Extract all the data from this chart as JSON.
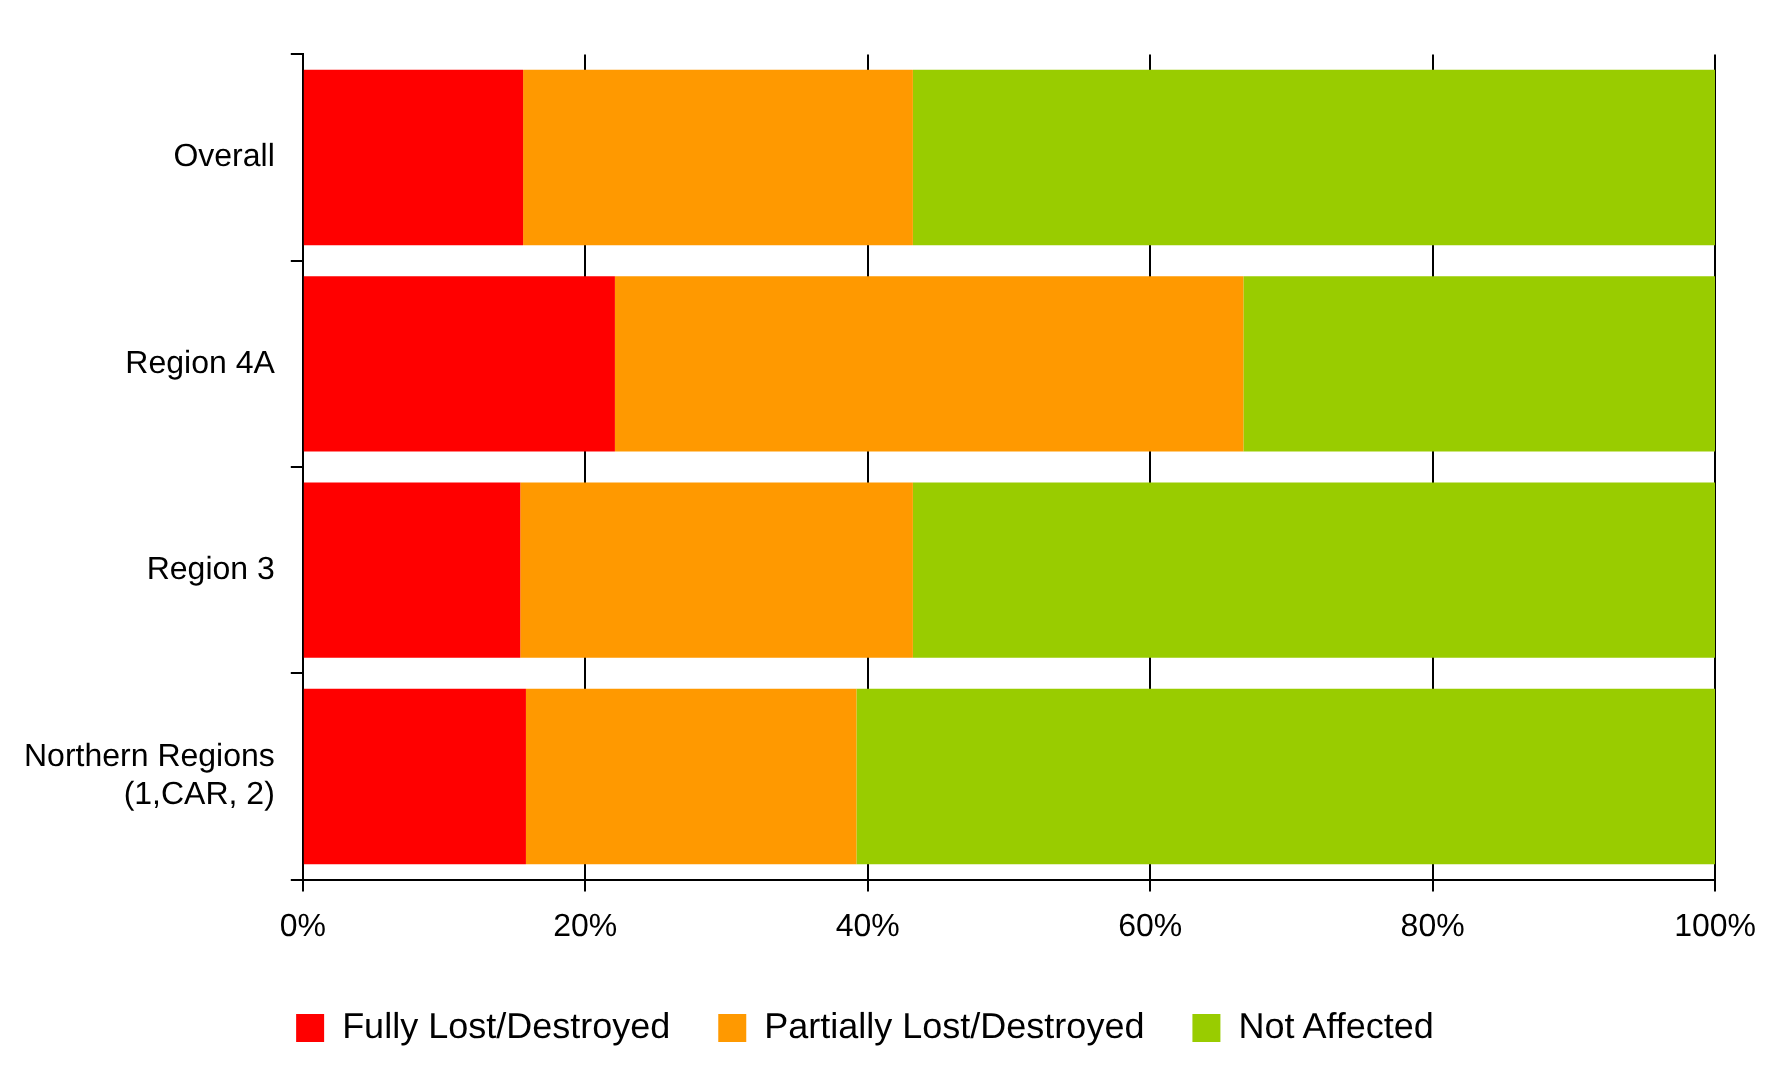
{
  "chart_data": {
    "type": "bar",
    "orientation": "horizontal",
    "stacked": true,
    "categories": [
      "Overall",
      "Region 4A",
      "Region 3",
      "Northern Regions (1,CAR, 2)"
    ],
    "series": [
      {
        "name": "Fully Lost/Destroyed",
        "color": "#ff0000",
        "values": [
          15.6,
          22.1,
          15.4,
          15.8
        ]
      },
      {
        "name": "Partially Lost/Destroyed",
        "color": "#ff9900",
        "values": [
          27.6,
          44.5,
          27.8,
          23.4
        ]
      },
      {
        "name": "Not Affected",
        "color": "#99cc00",
        "values": [
          56.8,
          33.4,
          56.8,
          60.8
        ]
      }
    ],
    "xlim": [
      0,
      100
    ],
    "xticks": [
      {
        "value": 0,
        "label": "0%"
      },
      {
        "value": 20,
        "label": "20%"
      },
      {
        "value": 40,
        "label": "40%"
      },
      {
        "value": 60,
        "label": "60%"
      },
      {
        "value": 80,
        "label": "80%"
      },
      {
        "value": 100,
        "label": "100%"
      }
    ],
    "grid": "x",
    "legend": "bottom"
  }
}
